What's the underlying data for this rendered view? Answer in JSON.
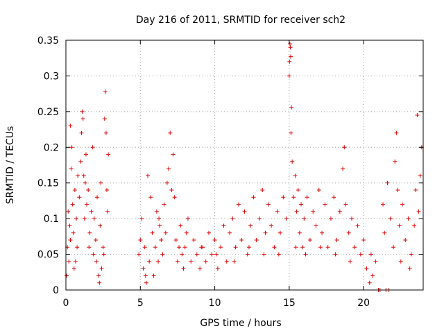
{
  "chart_data": {
    "type": "scatter",
    "title": "Day 216 of 2011, SRMTID for receiver sch2",
    "xlabel": "GPS time / hours",
    "ylabel": "SRMTID / TECUs",
    "xlim": [
      0,
      24
    ],
    "ylim": [
      0,
      0.35
    ],
    "xticks": [
      0,
      5,
      10,
      15,
      20
    ],
    "xtick_labels": [
      "0",
      "5",
      "10",
      "15",
      "20"
    ],
    "yticks": [
      0,
      0.05,
      0.1,
      0.15,
      0.2,
      0.25,
      0.3,
      0.35
    ],
    "ytick_labels": [
      "0",
      "0.05",
      "0.1",
      "0.15",
      "0.2",
      "0.25",
      "0.3",
      "0.35"
    ],
    "grid": true,
    "series": [
      {
        "name": "SRMTID",
        "color": "#e00000",
        "marker": "plus",
        "points": [
          [
            0.05,
            0.02
          ],
          [
            0.1,
            0.06
          ],
          [
            0.15,
            0.11
          ],
          [
            0.2,
            0.04
          ],
          [
            0.25,
            0.09
          ],
          [
            0.3,
            0.23
          ],
          [
            0.35,
            0.17
          ],
          [
            0.4,
            0.2
          ],
          [
            0.45,
            0.12
          ],
          [
            0.5,
            0.08
          ],
          [
            0.55,
            0.03
          ],
          [
            0.6,
            0.14
          ],
          [
            0.7,
            0.1
          ],
          [
            0.75,
            0.06
          ],
          [
            0.8,
            0.16
          ],
          [
            0.9,
            0.13
          ],
          [
            1.0,
            0.18
          ],
          [
            1.05,
            0.22
          ],
          [
            1.1,
            0.25
          ],
          [
            1.15,
            0.24
          ],
          [
            1.2,
            0.16
          ],
          [
            1.3,
            0.15
          ],
          [
            1.35,
            0.19
          ],
          [
            1.4,
            0.12
          ],
          [
            1.5,
            0.14
          ],
          [
            1.6,
            0.08
          ],
          [
            1.7,
            0.11
          ],
          [
            1.8,
            0.2
          ],
          [
            1.85,
            0.05
          ],
          [
            1.9,
            0.1
          ],
          [
            2.0,
            0.07
          ],
          [
            2.05,
            0.04
          ],
          [
            2.1,
            0.13
          ],
          [
            2.2,
            0.02
          ],
          [
            2.3,
            0.09
          ],
          [
            2.35,
            0.15
          ],
          [
            2.4,
            0.03
          ],
          [
            2.5,
            0.06
          ],
          [
            2.6,
            0.24
          ],
          [
            2.65,
            0.278
          ],
          [
            2.7,
            0.22
          ],
          [
            2.75,
            0.14
          ],
          [
            2.8,
            0.11
          ],
          [
            2.85,
            0.19
          ],
          [
            0.3,
            0.07
          ],
          [
            0.65,
            0.04
          ],
          [
            1.25,
            0.1
          ],
          [
            1.55,
            0.06
          ],
          [
            2.25,
            0.01
          ],
          [
            2.55,
            0.05
          ],
          [
            4.9,
            0.05
          ],
          [
            5.0,
            0.07
          ],
          [
            5.1,
            0.1
          ],
          [
            5.2,
            0.03
          ],
          [
            5.3,
            0.06
          ],
          [
            5.4,
            0.01
          ],
          [
            5.5,
            0.16
          ],
          [
            5.6,
            0.04
          ],
          [
            5.7,
            0.13
          ],
          [
            5.8,
            0.08
          ],
          [
            5.9,
            0.02
          ],
          [
            6.0,
            0.06
          ],
          [
            6.1,
            0.11
          ],
          [
            6.2,
            0.04
          ],
          [
            6.3,
            0.09
          ],
          [
            6.4,
            0.07
          ],
          [
            6.5,
            0.05
          ],
          [
            6.6,
            0.12
          ],
          [
            6.7,
            0.08
          ],
          [
            6.8,
            0.15
          ],
          [
            6.9,
            0.17
          ],
          [
            7.0,
            0.22
          ],
          [
            7.1,
            0.14
          ],
          [
            7.2,
            0.19
          ],
          [
            7.3,
            0.13
          ],
          [
            7.4,
            0.07
          ],
          [
            7.5,
            0.04
          ],
          [
            7.6,
            0.06
          ],
          [
            7.7,
            0.09
          ],
          [
            7.8,
            0.05
          ],
          [
            7.9,
            0.03
          ],
          [
            8.0,
            0.06
          ],
          [
            8.2,
            0.1
          ],
          [
            8.4,
            0.04
          ],
          [
            8.6,
            0.07
          ],
          [
            8.8,
            0.05
          ],
          [
            9.0,
            0.03
          ],
          [
            9.2,
            0.06
          ],
          [
            9.4,
            0.04
          ],
          [
            9.6,
            0.08
          ],
          [
            9.8,
            0.05
          ],
          [
            10.0,
            0.07
          ],
          [
            10.2,
            0.03
          ],
          [
            10.4,
            0.06
          ],
          [
            10.6,
            0.09
          ],
          [
            10.8,
            0.04
          ],
          [
            11.0,
            0.08
          ],
          [
            11.2,
            0.1
          ],
          [
            11.4,
            0.06
          ],
          [
            11.6,
            0.12
          ],
          [
            11.8,
            0.07
          ],
          [
            12.0,
            0.11
          ],
          [
            12.2,
            0.05
          ],
          [
            12.4,
            0.09
          ],
          [
            12.6,
            0.13
          ],
          [
            12.8,
            0.07
          ],
          [
            13.0,
            0.1
          ],
          [
            13.2,
            0.14
          ],
          [
            13.4,
            0.08
          ],
          [
            13.6,
            0.12
          ],
          [
            13.8,
            0.09
          ],
          [
            14.0,
            0.06
          ],
          [
            14.2,
            0.11
          ],
          [
            14.4,
            0.08
          ],
          [
            14.6,
            0.13
          ],
          [
            14.8,
            0.1
          ],
          [
            5.35,
            0.02
          ],
          [
            6.25,
            0.1
          ],
          [
            8.1,
            0.08
          ],
          [
            9.1,
            0.06
          ],
          [
            10.1,
            0.05
          ],
          [
            11.3,
            0.04
          ],
          [
            12.3,
            0.06
          ],
          [
            13.3,
            0.05
          ],
          [
            14.3,
            0.05
          ],
          [
            15.0,
            0.3
          ],
          [
            15.02,
            0.32
          ],
          [
            15.05,
            0.345
          ],
          [
            15.08,
            0.34
          ],
          [
            15.1,
            0.327
          ],
          [
            15.12,
            0.22
          ],
          [
            15.15,
            0.256
          ],
          [
            15.2,
            0.18
          ],
          [
            15.3,
            0.13
          ],
          [
            15.4,
            0.16
          ],
          [
            15.5,
            0.11
          ],
          [
            15.6,
            0.14
          ],
          [
            15.7,
            0.08
          ],
          [
            15.8,
            0.12
          ],
          [
            15.9,
            0.06
          ],
          [
            16.0,
            0.1
          ],
          [
            16.2,
            0.13
          ],
          [
            16.4,
            0.07
          ],
          [
            16.6,
            0.11
          ],
          [
            16.8,
            0.09
          ],
          [
            17.0,
            0.14
          ],
          [
            17.2,
            0.08
          ],
          [
            17.4,
            0.12
          ],
          [
            17.6,
            0.06
          ],
          [
            17.8,
            0.1
          ],
          [
            18.0,
            0.13
          ],
          [
            18.2,
            0.07
          ],
          [
            18.4,
            0.11
          ],
          [
            18.6,
            0.17
          ],
          [
            18.7,
            0.2
          ],
          [
            18.8,
            0.12
          ],
          [
            19.0,
            0.08
          ],
          [
            19.2,
            0.1
          ],
          [
            19.4,
            0.06
          ],
          [
            19.6,
            0.09
          ],
          [
            19.8,
            0.05
          ],
          [
            20.0,
            0.07
          ],
          [
            20.2,
            0.03
          ],
          [
            20.4,
            0.01
          ],
          [
            20.5,
            0.05
          ],
          [
            20.6,
            0.02
          ],
          [
            20.8,
            0.04
          ],
          [
            21.0,
            0.0
          ],
          [
            21.1,
            0.0
          ],
          [
            21.5,
            0.0
          ],
          [
            21.7,
            0.0
          ],
          [
            21.3,
            0.12
          ],
          [
            21.4,
            0.08
          ],
          [
            21.6,
            0.15
          ],
          [
            21.8,
            0.1
          ],
          [
            22.0,
            0.06
          ],
          [
            22.1,
            0.18
          ],
          [
            22.2,
            0.22
          ],
          [
            22.3,
            0.14
          ],
          [
            22.4,
            0.09
          ],
          [
            22.6,
            0.12
          ],
          [
            22.8,
            0.07
          ],
          [
            23.0,
            0.1
          ],
          [
            23.2,
            0.05
          ],
          [
            23.4,
            0.09
          ],
          [
            23.5,
            0.14
          ],
          [
            23.6,
            0.245
          ],
          [
            23.7,
            0.11
          ],
          [
            23.8,
            0.16
          ],
          [
            23.9,
            0.2
          ],
          [
            15.45,
            0.06
          ],
          [
            16.1,
            0.05
          ],
          [
            17.1,
            0.06
          ],
          [
            18.1,
            0.05
          ],
          [
            19.1,
            0.04
          ],
          [
            22.5,
            0.04
          ],
          [
            23.1,
            0.03
          ]
        ]
      }
    ]
  }
}
